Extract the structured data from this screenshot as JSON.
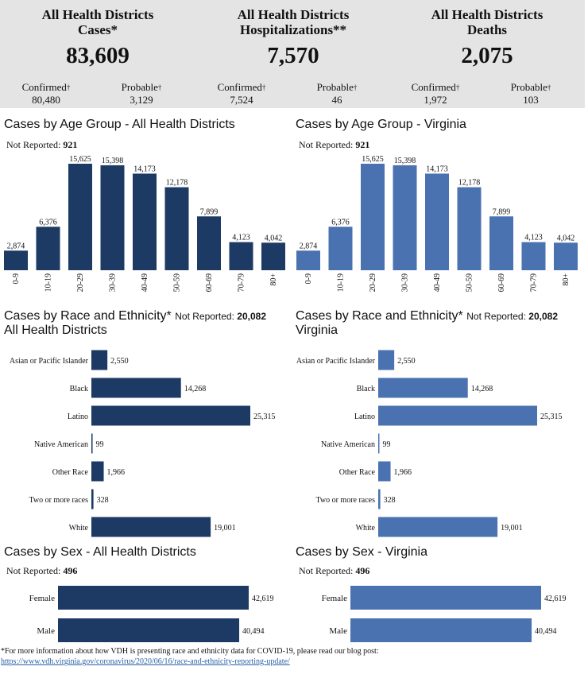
{
  "header": {
    "stats": [
      {
        "title": "All Health Districts\nCases*",
        "total": "83,609",
        "subs": [
          {
            "label": "Confirmed",
            "dagger": "†",
            "value": "80,480"
          },
          {
            "label": "Probable",
            "dagger": "†",
            "value": "3,129"
          }
        ]
      },
      {
        "title": "All Health Districts\nHospitalizations**",
        "total": "7,570",
        "subs": [
          {
            "label": "Confirmed",
            "dagger": "†",
            "value": "7,524"
          },
          {
            "label": "Probable",
            "dagger": "†",
            "value": "46"
          }
        ]
      },
      {
        "title": "All Health Districts\nDeaths",
        "total": "2,075",
        "subs": [
          {
            "label": "Confirmed",
            "dagger": "†",
            "value": "1,972"
          },
          {
            "label": "Probable",
            "dagger": "†",
            "value": "103"
          }
        ]
      }
    ]
  },
  "colors": {
    "dark": "#1c3a63",
    "light": "#4a71b0",
    "header_bg": "#e4e4e4"
  },
  "not_reported_label": "Not Reported:",
  "chart_data": [
    {
      "id": "age-districts",
      "type": "bar",
      "title": "Cases by Age Group - All Health Districts",
      "not_reported": "921",
      "color": "dark",
      "categories": [
        "0-9",
        "10-19",
        "20-29",
        "30-39",
        "40-49",
        "50-59",
        "60-69",
        "70-79",
        "80+"
      ],
      "values": [
        2874,
        6376,
        15625,
        15398,
        14173,
        12178,
        7899,
        4123,
        4042
      ],
      "labels": [
        "2,874",
        "6,376",
        "15,625",
        "15,398",
        "14,173",
        "12,178",
        "7,899",
        "4,123",
        "4,042"
      ]
    },
    {
      "id": "age-virginia",
      "type": "bar",
      "title": "Cases by Age Group - Virginia",
      "not_reported": "921",
      "color": "light",
      "categories": [
        "0-9",
        "10-19",
        "20-29",
        "30-39",
        "40-49",
        "50-59",
        "60-69",
        "70-79",
        "80+"
      ],
      "values": [
        2874,
        6376,
        15625,
        15398,
        14173,
        12178,
        7899,
        4123,
        4042
      ],
      "labels": [
        "2,874",
        "6,376",
        "15,625",
        "15,398",
        "14,173",
        "12,178",
        "7,899",
        "4,123",
        "4,042"
      ]
    },
    {
      "id": "race-districts",
      "type": "bar",
      "orientation": "horizontal",
      "title": "Cases by Race and Ethnicity*",
      "subtitle": "All Health Districts",
      "not_reported": "20,082",
      "color": "dark",
      "categories": [
        "Asian or Pacific Islander",
        "Black",
        "Latino",
        "Native American",
        "Other Race",
        "Two or more races",
        "White"
      ],
      "values": [
        2550,
        14268,
        25315,
        99,
        1966,
        328,
        19001
      ],
      "labels": [
        "2,550",
        "14,268",
        "25,315",
        "99",
        "1,966",
        "328",
        "19,001"
      ]
    },
    {
      "id": "race-virginia",
      "type": "bar",
      "orientation": "horizontal",
      "title": "Cases by Race and Ethnicity*",
      "subtitle": "Virginia",
      "not_reported": "20,082",
      "color": "light",
      "categories": [
        "Asian or Pacific Islander",
        "Black",
        "Latino",
        "Native American",
        "Other Race",
        "Two or more races",
        "White"
      ],
      "values": [
        2550,
        14268,
        25315,
        99,
        1966,
        328,
        19001
      ],
      "labels": [
        "2,550",
        "14,268",
        "25,315",
        "99",
        "1,966",
        "328",
        "19,001"
      ]
    },
    {
      "id": "sex-districts",
      "type": "bar",
      "orientation": "horizontal",
      "title": "Cases by Sex - All Health Districts",
      "not_reported": "496",
      "color": "dark",
      "categories": [
        "Female",
        "Male"
      ],
      "values": [
        42619,
        40494
      ],
      "labels": [
        "42,619",
        "40,494"
      ]
    },
    {
      "id": "sex-virginia",
      "type": "bar",
      "orientation": "horizontal",
      "title": "Cases by Sex - Virginia",
      "not_reported": "496",
      "color": "light",
      "categories": [
        "Female",
        "Male"
      ],
      "values": [
        42619,
        40494
      ],
      "labels": [
        "42,619",
        "40,494"
      ]
    }
  ],
  "footnote": {
    "text": "*For more information about how VDH is presenting race and ethnicity data for COVID-19, please read our blog post:",
    "link": "https://www.vdh.virginia.gov/coronavirus/2020/06/16/race-and-ethnicity-reporting-update/"
  }
}
